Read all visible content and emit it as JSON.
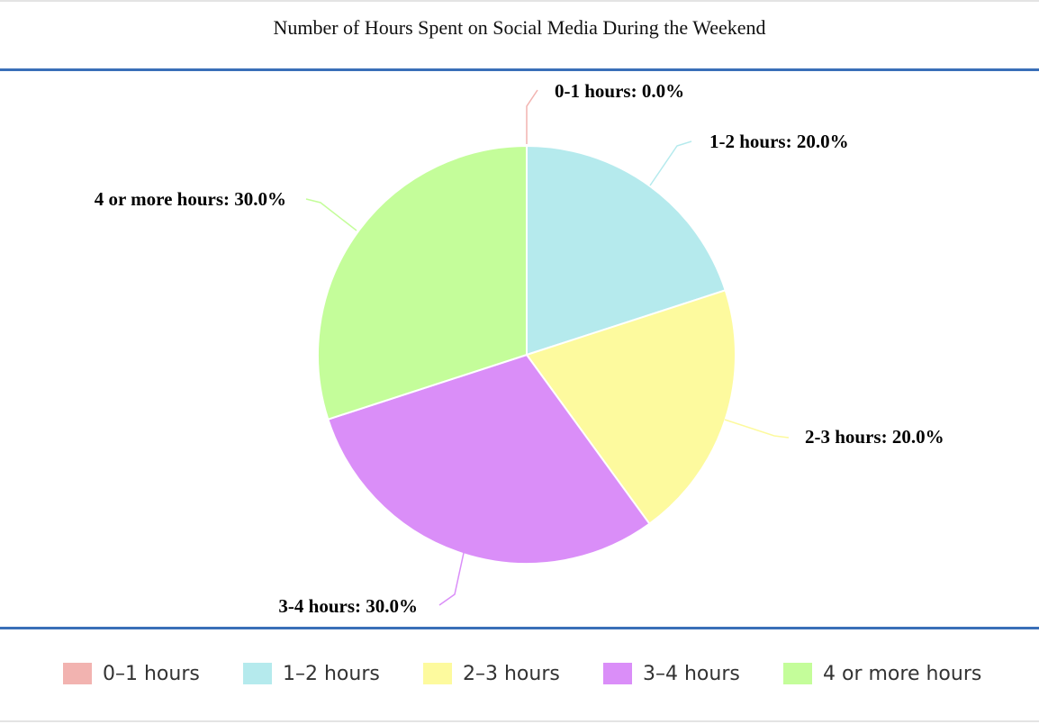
{
  "chart_data": {
    "type": "pie",
    "title": "Number of Hours Spent on Social Media During the Weekend",
    "categories": [
      "0-1 hours",
      "1-2 hours",
      "2-3 hours",
      "3-4 hours",
      "4 or more hours"
    ],
    "values": [
      0.0,
      20.0,
      20.0,
      30.0,
      30.0
    ],
    "data_labels": [
      "0-1 hours: 0.0%",
      "1-2 hours: 20.0%",
      "2-3 hours: 20.0%",
      "3-4 hours: 30.0%",
      "4 or more hours: 30.0%"
    ],
    "colors": [
      "#f2b3b0",
      "#b5eaed",
      "#fdfa9e",
      "#da8ef8",
      "#c4fd9a"
    ],
    "legend": {
      "position": "bottom",
      "items": [
        "0–1 hours",
        "1–2 hours",
        "2–3 hours",
        "3–4 hours",
        "4 or more hours"
      ]
    }
  }
}
